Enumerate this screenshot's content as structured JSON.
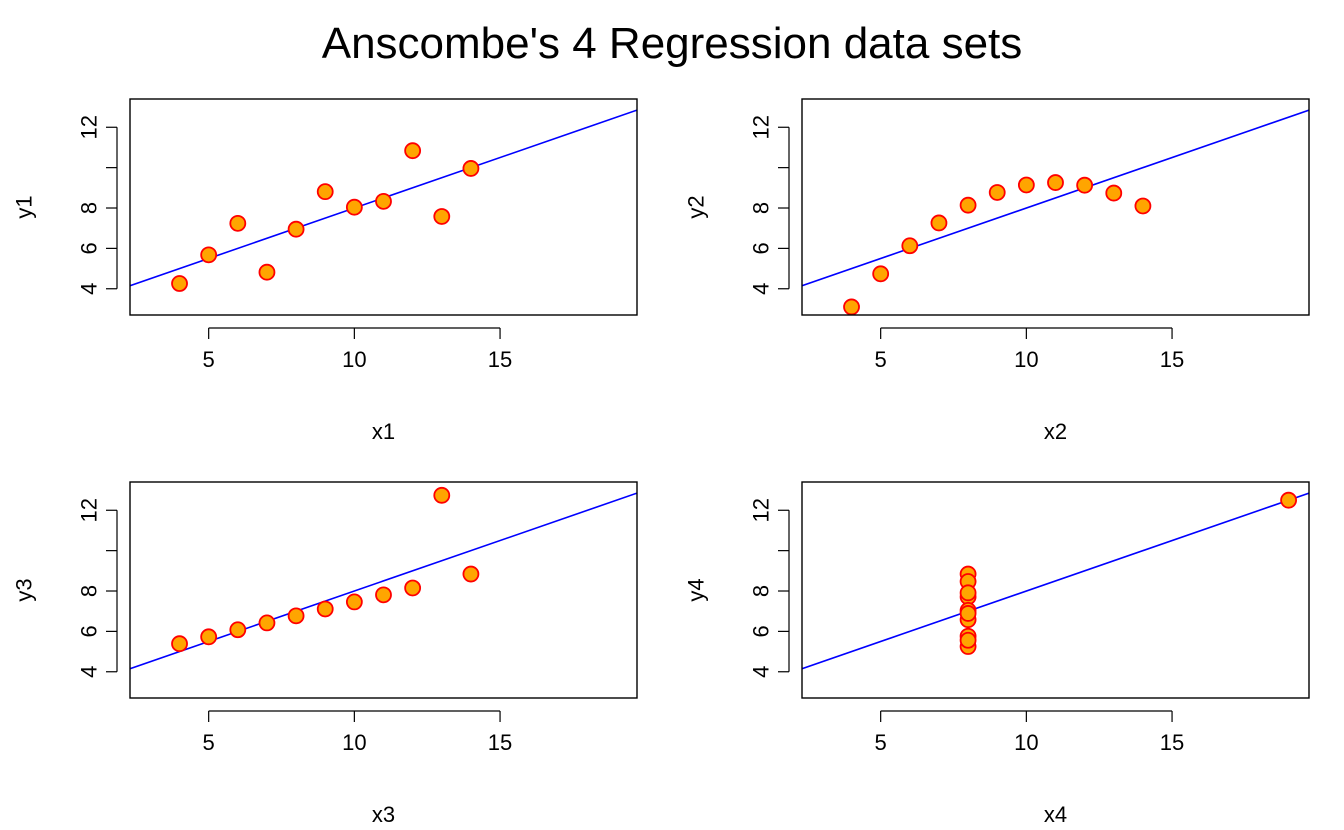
{
  "title": "Anscombe's 4 Regression data sets",
  "colors": {
    "point_fill": "#FFA500",
    "point_stroke": "#FF0000",
    "regression_line": "#0000FF",
    "axes": "#000000"
  },
  "chart_data": [
    {
      "type": "scatter",
      "xlabel": "x1",
      "ylabel": "y1",
      "xlim": [
        2.3,
        19.7
      ],
      "ylim": [
        2.7,
        13.4
      ],
      "xticks": [
        5,
        10,
        15
      ],
      "yticks": [
        4,
        6,
        8,
        10,
        12
      ],
      "ytick_labels": [
        "4",
        "6",
        "8",
        "",
        "12"
      ],
      "x": [
        4,
        5,
        6,
        7,
        8,
        9,
        10,
        11,
        12,
        13,
        14
      ],
      "y": [
        4.26,
        5.68,
        7.24,
        4.82,
        6.95,
        8.81,
        8.04,
        8.33,
        10.84,
        7.58,
        9.96
      ],
      "regression": {
        "intercept": 3.0,
        "slope": 0.5
      }
    },
    {
      "type": "scatter",
      "xlabel": "x2",
      "ylabel": "y2",
      "xlim": [
        2.3,
        19.7
      ],
      "ylim": [
        2.7,
        13.4
      ],
      "xticks": [
        5,
        10,
        15
      ],
      "yticks": [
        4,
        6,
        8,
        10,
        12
      ],
      "ytick_labels": [
        "4",
        "6",
        "8",
        "",
        "12"
      ],
      "x": [
        4,
        5,
        6,
        7,
        8,
        9,
        10,
        11,
        12,
        13,
        14
      ],
      "y": [
        3.1,
        4.74,
        6.13,
        7.26,
        8.14,
        8.77,
        9.14,
        9.26,
        9.13,
        8.74,
        8.1
      ],
      "regression": {
        "intercept": 3.0,
        "slope": 0.5
      }
    },
    {
      "type": "scatter",
      "xlabel": "x3",
      "ylabel": "y3",
      "xlim": [
        2.3,
        19.7
      ],
      "ylim": [
        2.7,
        13.4
      ],
      "xticks": [
        5,
        10,
        15
      ],
      "yticks": [
        4,
        6,
        8,
        10,
        12
      ],
      "ytick_labels": [
        "4",
        "6",
        "8",
        "",
        "12"
      ],
      "x": [
        4,
        5,
        6,
        7,
        8,
        9,
        10,
        11,
        12,
        13,
        14
      ],
      "y": [
        5.39,
        5.73,
        6.08,
        6.42,
        6.77,
        7.11,
        7.46,
        7.81,
        8.15,
        12.74,
        8.84
      ],
      "regression": {
        "intercept": 3.0,
        "slope": 0.5
      }
    },
    {
      "type": "scatter",
      "xlabel": "x4",
      "ylabel": "y4",
      "xlim": [
        2.3,
        19.7
      ],
      "ylim": [
        2.7,
        13.4
      ],
      "xticks": [
        5,
        10,
        15
      ],
      "yticks": [
        4,
        6,
        8,
        10,
        12
      ],
      "ytick_labels": [
        "4",
        "6",
        "8",
        "",
        "12"
      ],
      "x": [
        8,
        8,
        8,
        8,
        8,
        8,
        8,
        19,
        8,
        8,
        8
      ],
      "y": [
        6.58,
        5.76,
        7.71,
        8.84,
        8.47,
        7.04,
        5.25,
        12.5,
        5.56,
        7.91,
        6.89
      ],
      "regression": {
        "intercept": 3.0,
        "slope": 0.5
      }
    }
  ]
}
